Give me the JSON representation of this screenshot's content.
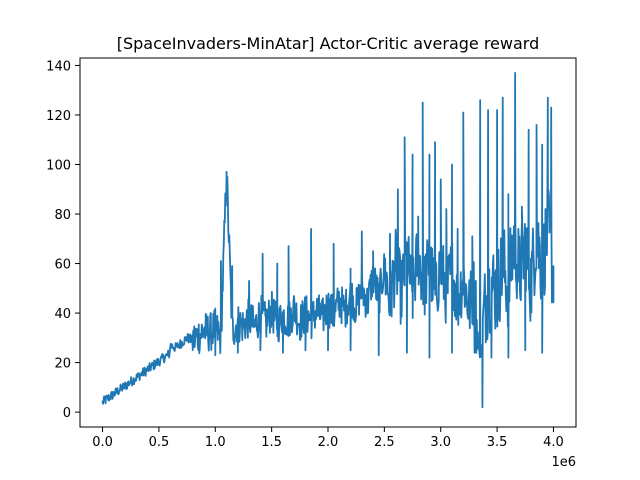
{
  "chart_data": {
    "type": "line",
    "title": "[SpaceInvaders-MinAtar] Actor-Critic average reward",
    "xlabel": "",
    "ylabel": "",
    "x_offset_label": "1e6",
    "xlim": [
      -0.2,
      4.2
    ],
    "ylim": [
      -6,
      143
    ],
    "xticks": [
      0.0,
      0.5,
      1.0,
      1.5,
      2.0,
      2.5,
      3.0,
      3.5,
      4.0
    ],
    "xtick_labels": [
      "0.0",
      "0.5",
      "1.0",
      "1.5",
      "2.0",
      "2.5",
      "3.0",
      "3.5",
      "4.0"
    ],
    "yticks": [
      0,
      20,
      40,
      60,
      80,
      100,
      120,
      140
    ],
    "ytick_labels": [
      "0",
      "20",
      "40",
      "60",
      "80",
      "100",
      "120",
      "140"
    ],
    "grid": false,
    "legend": "none",
    "line_color": "#1f77b4",
    "series": [
      {
        "x": [
          0.0,
          0.02,
          0.05,
          0.1,
          0.15,
          0.2,
          0.25,
          0.3,
          0.35,
          0.4,
          0.45,
          0.5,
          0.55,
          0.6,
          0.65,
          0.7,
          0.75,
          0.8,
          0.85,
          0.9,
          0.95,
          1.0,
          1.05,
          1.1,
          1.15,
          1.2,
          1.25,
          1.3,
          1.35,
          1.4,
          1.45,
          1.5,
          1.55,
          1.6,
          1.65,
          1.7,
          1.75,
          1.8,
          1.85,
          1.9,
          1.95,
          2.0,
          2.05,
          2.1,
          2.15,
          2.2,
          2.25,
          2.3,
          2.35,
          2.4,
          2.45,
          2.5,
          2.55,
          2.6,
          2.65,
          2.7,
          2.75,
          2.8,
          2.85,
          2.9,
          2.95,
          3.0,
          3.05,
          3.1,
          3.15,
          3.2,
          3.25,
          3.3,
          3.35,
          3.38,
          3.4,
          3.45,
          3.5,
          3.55,
          3.6,
          3.65,
          3.7,
          3.75,
          3.8,
          3.85,
          3.9,
          3.95,
          4.0
        ],
        "y": [
          4,
          3,
          5,
          6,
          7,
          8,
          9,
          11,
          13,
          15,
          18,
          22,
          24,
          27,
          26,
          28,
          30,
          29,
          31,
          33,
          32,
          34,
          30,
          97,
          33,
          36,
          35,
          38,
          34,
          40,
          36,
          41,
          35,
          39,
          37,
          42,
          36,
          40,
          37,
          41,
          38,
          43,
          39,
          45,
          41,
          48,
          42,
          50,
          44,
          55,
          46,
          58,
          45,
          60,
          48,
          63,
          47,
          65,
          50,
          62,
          46,
          60,
          48,
          58,
          45,
          55,
          42,
          50,
          2,
          38,
          45,
          52,
          48,
          60,
          50,
          70,
          55,
          68,
          52,
          72,
          58,
          75,
          55
        ],
        "high_peaks": [
          [
            1.1,
            97
          ],
          [
            1.05,
            61
          ],
          [
            1.15,
            59
          ],
          [
            1.3,
            53
          ],
          [
            1.42,
            64
          ],
          [
            1.55,
            60
          ],
          [
            1.65,
            67
          ],
          [
            1.85,
            74
          ],
          [
            2.05,
            68
          ],
          [
            2.2,
            58
          ],
          [
            2.3,
            73
          ],
          [
            2.4,
            65
          ],
          [
            2.55,
            72
          ],
          [
            2.62,
            90
          ],
          [
            2.68,
            111
          ],
          [
            2.75,
            104
          ],
          [
            2.8,
            79
          ],
          [
            2.84,
            125
          ],
          [
            2.9,
            104
          ],
          [
            2.95,
            109
          ],
          [
            3.0,
            94
          ],
          [
            3.05,
            82
          ],
          [
            3.1,
            100
          ],
          [
            3.15,
            74
          ],
          [
            3.2,
            121
          ],
          [
            3.28,
            71
          ],
          [
            3.35,
            126
          ],
          [
            3.42,
            122
          ],
          [
            3.5,
            122
          ],
          [
            3.55,
            127
          ],
          [
            3.6,
            88
          ],
          [
            3.66,
            137
          ],
          [
            3.72,
            83
          ],
          [
            3.78,
            114
          ],
          [
            3.85,
            116
          ],
          [
            3.9,
            108
          ],
          [
            3.95,
            127
          ],
          [
            3.98,
            123
          ]
        ],
        "low_dips": [
          [
            1.0,
            23
          ],
          [
            1.2,
            24
          ],
          [
            1.4,
            25
          ],
          [
            1.6,
            24
          ],
          [
            1.8,
            25
          ],
          [
            2.0,
            25
          ],
          [
            2.2,
            25
          ],
          [
            2.45,
            23
          ],
          [
            2.7,
            24
          ],
          [
            2.9,
            22
          ],
          [
            3.1,
            24
          ],
          [
            3.3,
            24
          ],
          [
            3.37,
            2
          ],
          [
            3.45,
            22
          ],
          [
            3.6,
            22
          ],
          [
            3.75,
            25
          ],
          [
            3.9,
            24
          ],
          [
            4.0,
            44
          ]
        ]
      }
    ]
  }
}
